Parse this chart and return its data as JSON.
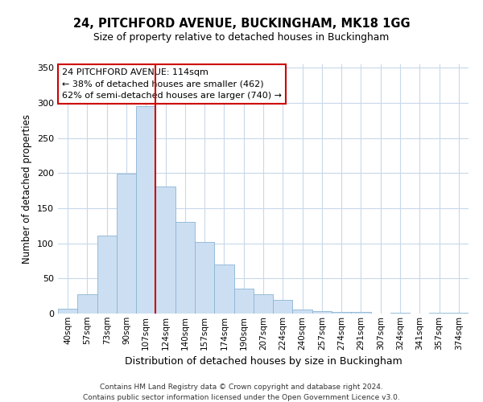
{
  "title": "24, PITCHFORD AVENUE, BUCKINGHAM, MK18 1GG",
  "subtitle": "Size of property relative to detached houses in Buckingham",
  "xlabel": "Distribution of detached houses by size in Buckingham",
  "ylabel": "Number of detached properties",
  "footnote1": "Contains HM Land Registry data © Crown copyright and database right 2024.",
  "footnote2": "Contains public sector information licensed under the Open Government Licence v3.0.",
  "bar_labels": [
    "40sqm",
    "57sqm",
    "73sqm",
    "90sqm",
    "107sqm",
    "124sqm",
    "140sqm",
    "157sqm",
    "174sqm",
    "190sqm",
    "207sqm",
    "224sqm",
    "240sqm",
    "257sqm",
    "274sqm",
    "291sqm",
    "307sqm",
    "324sqm",
    "341sqm",
    "357sqm",
    "374sqm"
  ],
  "bar_values": [
    7,
    28,
    111,
    199,
    295,
    181,
    131,
    102,
    70,
    35,
    27,
    20,
    6,
    4,
    2,
    2,
    0,
    1,
    0,
    1,
    1
  ],
  "bar_color": "#ccdff2",
  "bar_edge_color": "#8ab4d4",
  "vline_x": 4.5,
  "vline_color": "#cc0000",
  "ylim": [
    0,
    355
  ],
  "yticks": [
    0,
    50,
    100,
    150,
    200,
    250,
    300,
    350
  ],
  "annotation_title": "24 PITCHFORD AVENUE: 114sqm",
  "annotation_line1": "← 38% of detached houses are smaller (462)",
  "annotation_line2": "62% of semi-detached houses are larger (740) →",
  "annotation_box_color": "#ffffff",
  "annotation_box_edge": "#cc0000",
  "background_color": "#ffffff",
  "grid_color": "#c8d8ea"
}
